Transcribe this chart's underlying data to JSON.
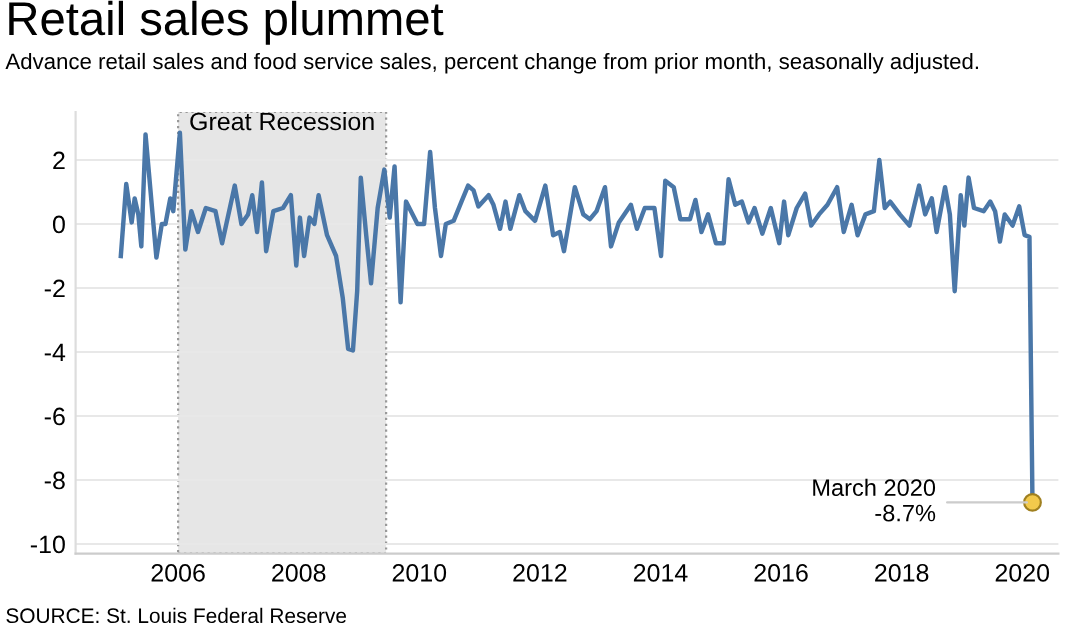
{
  "chart_data": {
    "type": "line",
    "title": "Retail sales plummet",
    "subtitle": "Advance retail sales and food service sales, percent change from prior month, seasonally adjusted.",
    "series": [
      {
        "type": "line",
        "color": "#4a77a8",
        "x": [
          2005.05,
          2005.14,
          2005.23,
          2005.28,
          2005.34,
          2005.39,
          2005.46,
          2005.64,
          2005.73,
          2005.79,
          2005.87,
          2005.92,
          2006.03,
          2006.12,
          2006.22,
          2006.33,
          2006.46,
          2006.62,
          2006.73,
          2006.94,
          2007.05,
          2007.16,
          2007.23,
          2007.31,
          2007.39,
          2007.46,
          2007.58,
          2007.74,
          2007.87,
          2007.96,
          2008.02,
          2008.09,
          2008.18,
          2008.26,
          2008.33,
          2008.47,
          2008.62,
          2008.73,
          2008.82,
          2008.9,
          2008.97,
          2009.03,
          2009.12,
          2009.2,
          2009.31,
          2009.42,
          2009.51,
          2009.59,
          2009.69,
          2009.78,
          2009.97,
          2010.08,
          2010.18,
          2010.26,
          2010.36,
          2010.44,
          2010.57,
          2010.7,
          2010.81,
          2010.9,
          2010.98,
          2011.15,
          2011.23,
          2011.34,
          2011.43,
          2011.51,
          2011.66,
          2011.76,
          2011.92,
          2012.09,
          2012.22,
          2012.33,
          2012.4,
          2012.58,
          2012.72,
          2012.83,
          2012.94,
          2013.08,
          2013.18,
          2013.31,
          2013.51,
          2013.61,
          2013.74,
          2013.9,
          2014.01,
          2014.08,
          2014.22,
          2014.33,
          2014.49,
          2014.58,
          2014.68,
          2014.79,
          2014.92,
          2015.05,
          2015.13,
          2015.24,
          2015.35,
          2015.46,
          2015.56,
          2015.69,
          2015.83,
          2015.97,
          2016.05,
          2016.12,
          2016.26,
          2016.4,
          2016.5,
          2016.63,
          2016.77,
          2016.93,
          2017.04,
          2017.17,
          2017.27,
          2017.4,
          2017.54,
          2017.63,
          2017.72,
          2017.81,
          2017.97,
          2018.13,
          2018.29,
          2018.39,
          2018.5,
          2018.58,
          2018.72,
          2018.8,
          2018.88,
          2018.98,
          2019.04,
          2019.11,
          2019.2,
          2019.36,
          2019.47,
          2019.55,
          2019.63,
          2019.71,
          2019.84,
          2019.95,
          2020.04,
          2020.12,
          2020.17
        ],
        "values": [
          -1.0,
          1.25,
          0.05,
          0.8,
          0.3,
          -0.7,
          2.8,
          -1.05,
          0.0,
          0.0,
          0.8,
          0.4,
          2.85,
          -0.8,
          0.4,
          -0.25,
          0.5,
          0.4,
          -0.6,
          1.2,
          0.0,
          0.3,
          0.9,
          -0.25,
          1.3,
          -0.85,
          0.4,
          0.5,
          0.9,
          -1.3,
          0.2,
          -1.0,
          0.2,
          0.0,
          0.9,
          -0.35,
          -1.0,
          -2.3,
          -3.9,
          -3.95,
          -2.1,
          1.45,
          -0.35,
          -1.85,
          0.5,
          1.7,
          0.2,
          1.8,
          -2.45,
          0.7,
          0.0,
          0.0,
          2.25,
          0.5,
          -1.0,
          0.0,
          0.1,
          0.7,
          1.2,
          1.05,
          0.55,
          0.9,
          0.6,
          -0.15,
          0.7,
          -0.15,
          0.9,
          0.4,
          0.1,
          1.2,
          -0.35,
          -0.25,
          -0.85,
          1.15,
          0.3,
          0.15,
          0.4,
          1.15,
          -0.7,
          0.05,
          0.6,
          -0.15,
          0.5,
          0.5,
          -1.0,
          1.35,
          1.15,
          0.15,
          0.15,
          0.75,
          -0.25,
          0.3,
          -0.6,
          -0.6,
          1.4,
          0.6,
          0.7,
          0.05,
          0.5,
          -0.3,
          0.5,
          -0.6,
          0.7,
          -0.35,
          0.5,
          0.95,
          -0.05,
          0.3,
          0.6,
          1.15,
          -0.25,
          0.6,
          -0.35,
          0.3,
          0.4,
          2.0,
          0.5,
          0.7,
          0.3,
          -0.05,
          1.2,
          0.3,
          0.8,
          -0.25,
          1.15,
          0.3,
          -2.1,
          0.9,
          -0.05,
          1.45,
          0.5,
          0.4,
          0.7,
          0.4,
          -0.55,
          0.3,
          -0.05,
          0.55,
          -0.35,
          -0.4,
          -8.7
        ]
      },
      {
        "type": "scatter",
        "color": "#f2c94c",
        "x": [
          2020.17
        ],
        "values": [
          -8.7
        ],
        "marker": "circle"
      }
    ],
    "xlim": [
      2004.3,
      2020.6
    ],
    "xticks": [
      2006,
      2008,
      2010,
      2012,
      2014,
      2016,
      2018,
      2020
    ],
    "ylim": [
      -10.3,
      3.5
    ],
    "yticks": [
      -10,
      -8,
      -6,
      -4,
      -2,
      0,
      2
    ],
    "grid": "y",
    "marker": "none",
    "line_style": "solid",
    "bands": [
      {
        "axis": "x",
        "from": 2006.0,
        "to": 2009.45,
        "label": "Great Recession",
        "color": "#e6e6e6"
      }
    ],
    "annotations": [
      {
        "text": "March 2020\n-8.7%",
        "x": 2020.17,
        "y": -8.7
      },
      "SOURCE: St. Louis Federal Reserve"
    ]
  }
}
